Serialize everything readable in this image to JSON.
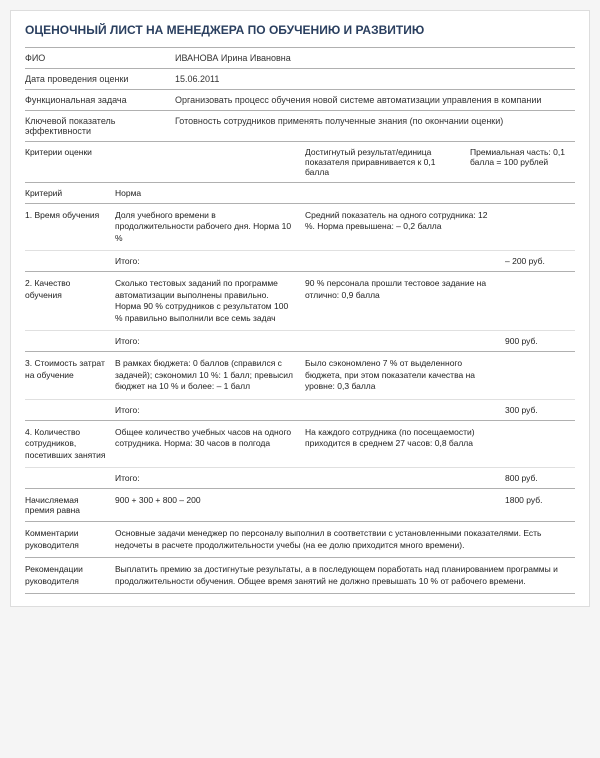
{
  "title": "ОЦЕНОЧНЫЙ ЛИСТ НА МЕНЕДЖЕРА ПО ОБУЧЕНИЮ И РАЗВИТИЮ",
  "header": {
    "fio_label": "ФИО",
    "fio_value": "ИВАНОВА Ирина Ивановна",
    "date_label": "Дата проведения оценки",
    "date_value": "15.06.2011",
    "task_label": "Функциональная задача",
    "task_value": "Организовать процесс обучения новой системе автоматизации управления в компании",
    "kpi_label": "Ключевой показатель эффективности",
    "kpi_value": "Готовность сотрудников применять полученные знания (по окончании оценки)"
  },
  "section_head": {
    "col1": "Критерии оценки",
    "col3": "Достигнутый результат/единица показателя приравнивается к 0,1 балла",
    "col4": "Премиальная часть: 0,1 балла = 100 рублей"
  },
  "subhead": {
    "c1": "Критерий",
    "c2": "Норма"
  },
  "criteria": [
    {
      "name": "1. Время обучения",
      "norm": "Доля учебного времени в продолжительности рабочего дня. Норма 10 %",
      "result": "Средний показатель на одного сотрудника: 12 %. Норма превышена: – 0,2 балла",
      "itog_label": "Итого:",
      "itog_value": "– 200 руб."
    },
    {
      "name": "2. Качество обучения",
      "norm": "Сколько тестовых заданий по программе автоматизации выполнены правильно. Норма 90 % сотрудников с результатом 100 % правильно выполнили все семь задач",
      "result": "90 % персонала прошли тестовое задание на отлично: 0,9 балла",
      "itog_label": "Итого:",
      "itog_value": "900 руб."
    },
    {
      "name": "3. Стоимость затрат на обучение",
      "norm": "В рамках бюджета: 0 баллов (справился с задачей); сэкономил 10 %: 1 балл; превысил бюджет на 10 % и более: – 1 балл",
      "result": "Было сэкономлено 7 % от выделенного бюджета, при этом показатели качества на уровне: 0,3 балла",
      "itog_label": "Итого:",
      "itog_value": "300 руб."
    },
    {
      "name": "4. Количество сотрудников, посетивших занятия",
      "norm": "Общее количество учебных часов на одного сотрудника. Норма: 30 часов в полгода",
      "result": "На каждого сотрудника (по посещаемости) приходится в среднем 27 часов: 0,8 балла",
      "itog_label": "Итого:",
      "itog_value": "800 руб."
    }
  ],
  "total": {
    "label": "Начисляемая премия равна",
    "formula": "900 + 300 + 800 – 200",
    "value": "1800 руб."
  },
  "comment": {
    "label": "Комментарии руководителя",
    "text": "Основные задачи менеджер по персоналу выполнил в соответствии с установленными показателями. Есть недочеты в расчете продолжительности учебы (на ее долю приходится много времени)."
  },
  "recommend": {
    "label": "Рекомендации руководителя",
    "text": "Выплатить премию за достигнутые результаты, а в последующем поработать над планированием программы и продолжительности обучения. Общее время занятий не должно превышать 10 % от рабочего времени."
  }
}
